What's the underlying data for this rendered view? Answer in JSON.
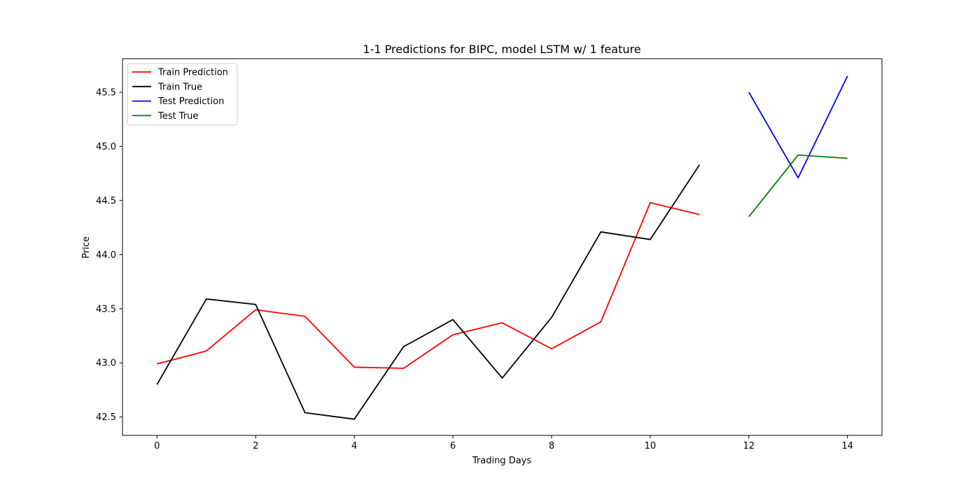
{
  "chart_data": {
    "type": "line",
    "title": "1-1 Predictions for BIPC, model LSTM w/ 1 feature",
    "xlabel": "Trading Days",
    "ylabel": "Price",
    "xlim": [
      -0.7,
      14.7
    ],
    "ylim": [
      42.33,
      45.81
    ],
    "x_ticks": [
      0,
      2,
      4,
      6,
      8,
      10,
      12,
      14
    ],
    "y_ticks": [
      42.5,
      43.0,
      43.5,
      44.0,
      44.5,
      45.0,
      45.5
    ],
    "y_tick_labels": [
      "42.5",
      "43.0",
      "43.5",
      "44.0",
      "44.5",
      "45.0",
      "45.5"
    ],
    "grid": false,
    "legend_position": "upper-left",
    "series": [
      {
        "name": "Train Prediction",
        "color": "#ff0000",
        "x": [
          0,
          1,
          2,
          3,
          4,
          5,
          6,
          7,
          8,
          9,
          10,
          11
        ],
        "values": [
          42.99,
          43.11,
          43.49,
          43.43,
          42.96,
          42.95,
          43.26,
          43.37,
          43.13,
          43.38,
          44.48,
          44.37
        ]
      },
      {
        "name": "Train True",
        "color": "#000000",
        "x": [
          0,
          1,
          2,
          3,
          4,
          5,
          6,
          7,
          8,
          9,
          10,
          11
        ],
        "values": [
          42.8,
          43.59,
          43.54,
          42.54,
          42.48,
          43.15,
          43.4,
          42.86,
          43.42,
          44.21,
          44.14,
          44.83
        ]
      },
      {
        "name": "Test Prediction",
        "color": "#0000ff",
        "x": [
          12,
          13,
          14
        ],
        "values": [
          45.5,
          44.71,
          45.65
        ]
      },
      {
        "name": "Test True",
        "color": "#008000",
        "x": [
          12,
          13,
          14
        ],
        "values": [
          44.35,
          44.92,
          44.89
        ]
      }
    ]
  }
}
